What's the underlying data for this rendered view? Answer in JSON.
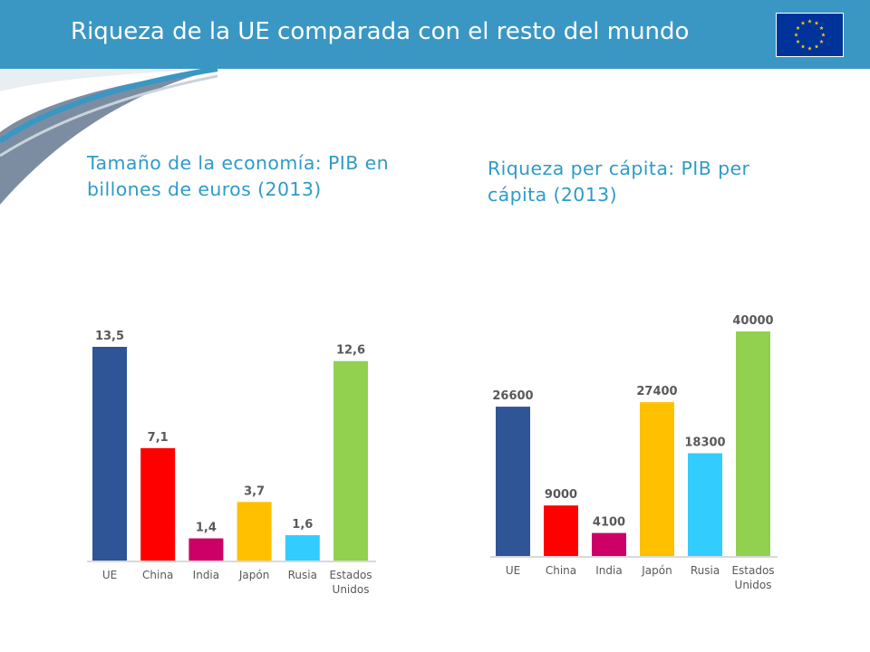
{
  "slide": {
    "title": "Riqueza de la UE comparada con el resto del mundo"
  },
  "colors": {
    "header": "#3a97c4",
    "subtitle": "#2e9bc8",
    "flag_blue": "#003399",
    "flag_star": "#ffcc00"
  },
  "icons": {
    "flag": "eu-flag-icon"
  },
  "chart_data": [
    {
      "type": "bar",
      "title": "Tamaño de la economía: PIB en billones de euros (2013)",
      "categories": [
        "UE",
        "China",
        "India",
        "Japón",
        "Rusia",
        "Estados Unidos"
      ],
      "values": [
        13.5,
        7.1,
        1.4,
        3.7,
        1.6,
        12.6
      ],
      "value_labels": [
        "13,5",
        "7,1",
        "1,4",
        "3,7",
        "1,6",
        "12,6"
      ],
      "colors": [
        "#2f5597",
        "#ff0000",
        "#cc0066",
        "#ffc000",
        "#33ccff",
        "#92d050"
      ],
      "ylim": [
        0,
        13.5
      ],
      "grid": false,
      "legend": "none"
    },
    {
      "type": "bar",
      "title": "Riqueza per cápita: PIB per cápita (2013)",
      "categories": [
        "UE",
        "China",
        "India",
        "Japón",
        "Rusia",
        "Estados Unidos"
      ],
      "values": [
        26600,
        9000,
        4100,
        27400,
        18300,
        40000
      ],
      "value_labels": [
        "26600",
        "9000",
        "4100",
        "27400",
        "18300",
        "40000"
      ],
      "colors": [
        "#2f5597",
        "#ff0000",
        "#cc0066",
        "#ffc000",
        "#33ccff",
        "#92d050"
      ],
      "ylim": [
        0,
        40000
      ],
      "grid": false,
      "legend": "none"
    }
  ]
}
